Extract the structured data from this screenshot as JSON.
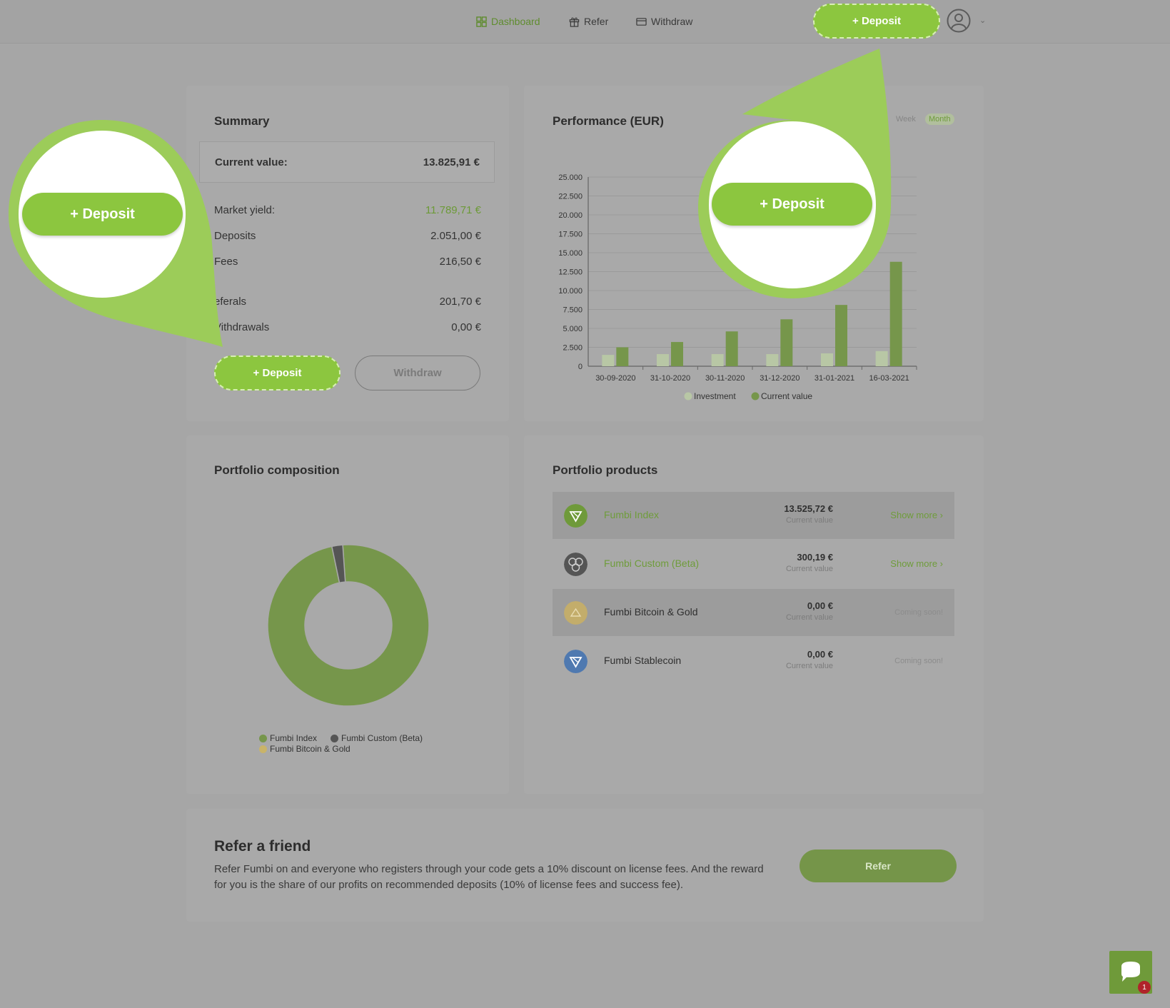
{
  "nav": {
    "dashboard": "Dashboard",
    "refer": "Refer",
    "withdraw": "Withdraw",
    "deposit": "+ Deposit"
  },
  "summary": {
    "title": "Summary",
    "current_label": "Current value:",
    "current_value": "13.825,91 €",
    "rows": [
      {
        "label": "Market yield:",
        "value": "11.789,71 €"
      },
      {
        "label": "Deposits",
        "value": "2.051,00 €"
      },
      {
        "label": "Fees",
        "value": "216,50 €"
      },
      {
        "label": "eferals",
        "value": "201,70 €"
      },
      {
        "label": "Vithdrawals",
        "value": "0,00 €"
      }
    ],
    "deposit_label": "+ Deposit",
    "withdraw_label": "Withdraw"
  },
  "performance": {
    "title": "Performance (EUR)",
    "toggle_week": "Week",
    "toggle_month": "Month"
  },
  "chart_data": [
    {
      "type": "bar",
      "categories": [
        "30-09-2020",
        "31-10-2020",
        "30-11-2020",
        "31-12-2020",
        "31-01-2021",
        "16-03-2021"
      ],
      "series": [
        {
          "name": "Investment",
          "values": [
            1500,
            1600,
            1600,
            1600,
            1700,
            2000
          ]
        },
        {
          "name": "Current value",
          "values": [
            2500,
            3200,
            4600,
            6200,
            8100,
            13800
          ]
        }
      ],
      "yticks": [
        "25.000",
        "22.500",
        "20.000",
        "17.500",
        "15.000",
        "12.500",
        "10.000",
        "7.500",
        "5.000",
        "2.500",
        "0"
      ],
      "ylim": [
        0,
        25000
      ],
      "legend": "bottom",
      "colors": {
        "Investment": "#b8c7a5",
        "Current value": "#76964b"
      }
    },
    {
      "type": "pie",
      "labels": [
        "Fumbi Index",
        "Fumbi Custom (Beta)",
        "Fumbi Bitcoin & Gold"
      ],
      "values": [
        13525.72,
        300.19,
        0
      ],
      "colors": [
        "#76964b",
        "#555555",
        "#c9b469"
      ],
      "legend": "bottom"
    }
  ],
  "composition": {
    "title": "Portfolio composition",
    "legend": [
      "Fumbi Index",
      "Fumbi Custom (Beta)",
      "Fumbi Bitcoin & Gold"
    ]
  },
  "products": {
    "title": "Portfolio products",
    "items": [
      {
        "name": "Fumbi Index",
        "value": "13.525,72 €",
        "sub": "Current value",
        "action": "Show more  ›"
      },
      {
        "name": "Fumbi Custom (Beta)",
        "value": "300,19 €",
        "sub": "Current value",
        "action": "Show more  ›"
      },
      {
        "name": "Fumbi Bitcoin & Gold",
        "value": "0,00 €",
        "sub": "Current value",
        "action": "Coming soon!"
      },
      {
        "name": "Fumbi Stablecoin",
        "value": "0,00 €",
        "sub": "Current value",
        "action": "Coming soon!"
      }
    ]
  },
  "refer": {
    "title": "Refer a friend",
    "text": "Refer Fumbi on and everyone who registers through your code gets a 10% discount on license fees. And the reward for you is the share of our profits on recommended deposits (10% of license fees and success fee).",
    "button": "Refer"
  },
  "chat": {
    "badge": "1"
  }
}
